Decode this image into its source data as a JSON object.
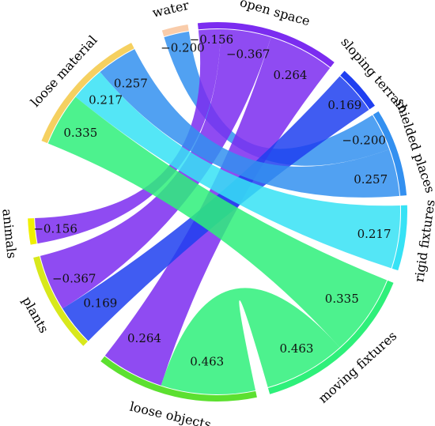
{
  "chart_data": {
    "type": "chord",
    "title": "",
    "nodes": [
      {
        "id": "water",
        "label": "water",
        "color": "#f9ccaa"
      },
      {
        "id": "open_space",
        "label": "open space",
        "color": "#7b2cf0"
      },
      {
        "id": "sloping_terrain",
        "label": "sloping terrain",
        "color": "#1f3ff0"
      },
      {
        "id": "shielded_places",
        "label": "shielded places",
        "color": "#3390f0"
      },
      {
        "id": "rigid_fixtures",
        "label": "rigid fixtures",
        "color": "#36e2f5"
      },
      {
        "id": "moving_fixtures",
        "label": "moving fixtures",
        "color": "#2ef07a"
      },
      {
        "id": "loose_objects",
        "label": "loose objects",
        "color": "#5ce030"
      },
      {
        "id": "plants",
        "label": "plants",
        "color": "#d8e81c"
      },
      {
        "id": "animals",
        "label": "animals",
        "color": "#f0f000"
      },
      {
        "id": "loose_material",
        "label": "loose material",
        "color": "#f5d060"
      }
    ],
    "links": [
      {
        "source": "water",
        "target": "shielded_places",
        "value": "−0.200",
        "color": "#3390f0"
      },
      {
        "source": "open_space",
        "target": "animals",
        "value": "−0.156",
        "color": "#7b2cf0"
      },
      {
        "source": "open_space",
        "target": "plants",
        "value": "−0.367",
        "color": "#7b2cf0"
      },
      {
        "source": "open_space",
        "target": "loose_objects",
        "value": "0.264",
        "color": "#7b2cf0"
      },
      {
        "source": "sloping_terrain",
        "target": "plants",
        "value": "0.169",
        "color": "#1f3ff0"
      },
      {
        "source": "loose_material",
        "target": "shielded_places",
        "value": "0.257",
        "color": "#3390f0"
      },
      {
        "source": "loose_material",
        "target": "rigid_fixtures",
        "value": "0.217",
        "color": "#36e2f5"
      },
      {
        "source": "loose_material",
        "target": "moving_fixtures",
        "value": "0.335",
        "color": "#2ef07a"
      },
      {
        "source": "loose_objects",
        "target": "moving_fixtures",
        "value": "0.463",
        "color": "#2ef07a"
      }
    ]
  }
}
